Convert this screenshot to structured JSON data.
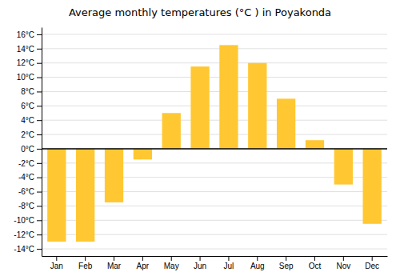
{
  "chart_data": {
    "type": "bar",
    "title": "Average monthly temperatures (°C ) in Poyakonda",
    "categories": [
      "Jan",
      "Feb",
      "Mar",
      "Apr",
      "May",
      "Jun",
      "Jul",
      "Aug",
      "Sep",
      "Oct",
      "Nov",
      "Dec"
    ],
    "values": [
      -13,
      -13,
      -7.5,
      -1.5,
      5,
      11.5,
      14.5,
      12,
      7,
      1.2,
      -5,
      -10.5
    ],
    "color": "#FFC832",
    "ylim": [
      -15,
      17
    ],
    "yticks": [
      {
        "value": -14,
        "label": "-14°C"
      },
      {
        "value": -12,
        "label": "-12°C"
      },
      {
        "value": -10,
        "label": "-10°C"
      },
      {
        "value": -8,
        "label": "-8°C"
      },
      {
        "value": -6,
        "label": "-6°C"
      },
      {
        "value": -4,
        "label": "-4°C"
      },
      {
        "value": -2,
        "label": "-2°C"
      },
      {
        "value": 0,
        "label": "0°C"
      },
      {
        "value": 2,
        "label": "2°C"
      },
      {
        "value": 4,
        "label": "4°C"
      },
      {
        "value": 6,
        "label": "6°C"
      },
      {
        "value": 8,
        "label": "8°C"
      },
      {
        "value": 10,
        "label": "10°C"
      },
      {
        "value": 12,
        "label": "12°C"
      },
      {
        "value": 14,
        "label": "14°C"
      },
      {
        "value": 16,
        "label": "16°C"
      }
    ],
    "grid": true
  }
}
